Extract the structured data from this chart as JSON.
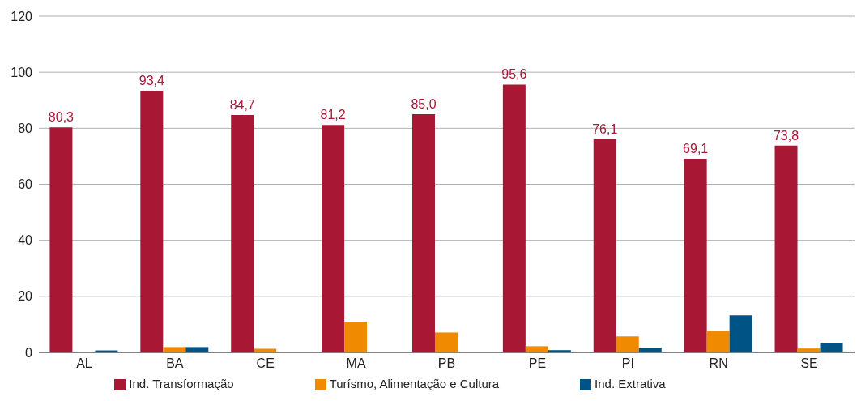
{
  "chart_data": {
    "type": "bar",
    "categories": [
      "AL",
      "BA",
      "CE",
      "MA",
      "PB",
      "PE",
      "PI",
      "RN",
      "SE"
    ],
    "series": [
      {
        "name": "Ind. Transformação",
        "color": "#a81835",
        "values": [
          80.3,
          93.4,
          84.7,
          81.2,
          85.0,
          95.6,
          76.1,
          69.1,
          73.8
        ],
        "value_labels": [
          "80,3",
          "93,4",
          "84,7",
          "81,2",
          "85,0",
          "95,6",
          "76,1",
          "69,1",
          "73,8"
        ]
      },
      {
        "name": "Turísmo, Alimentação e Cultura",
        "color": "#f08a00",
        "values": [
          0,
          1.9,
          1.3,
          11.0,
          7.1,
          2.2,
          5.7,
          7.7,
          1.4
        ]
      },
      {
        "name": "Ind. Extrativa",
        "color": "#005385",
        "values": [
          0.7,
          1.9,
          0,
          0,
          0,
          0.8,
          1.7,
          13.2,
          3.4
        ]
      }
    ],
    "ylim": [
      0,
      120
    ],
    "yticks": [
      0,
      20,
      40,
      60,
      80,
      100,
      120
    ],
    "grid": "y",
    "legend": "bottom"
  }
}
